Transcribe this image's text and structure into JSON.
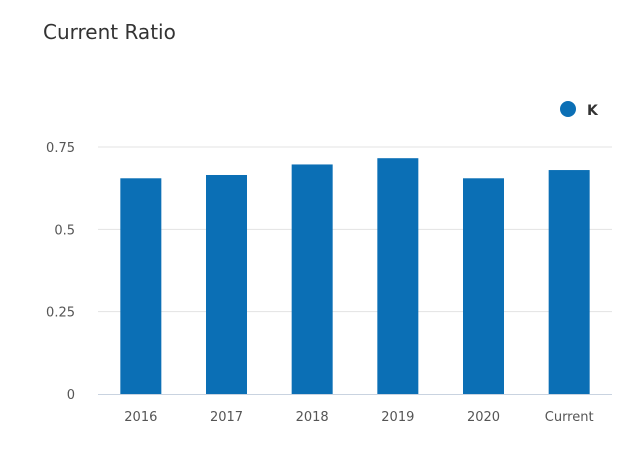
{
  "chart_data": {
    "type": "bar",
    "title": "Current Ratio",
    "xlabel": "",
    "ylabel": "",
    "categories": [
      "2016",
      "2017",
      "2018",
      "2019",
      "2020",
      "Current"
    ],
    "series": [
      {
        "name": "K",
        "color": "#0b6fb5",
        "values": [
          0.655,
          0.665,
          0.697,
          0.716,
          0.655,
          0.68
        ]
      }
    ],
    "yticks": [
      "0",
      "0.25",
      "0.5",
      "0.75"
    ],
    "ylim": [
      0,
      0.75
    ],
    "grid": true,
    "legend_position": "top-right"
  }
}
